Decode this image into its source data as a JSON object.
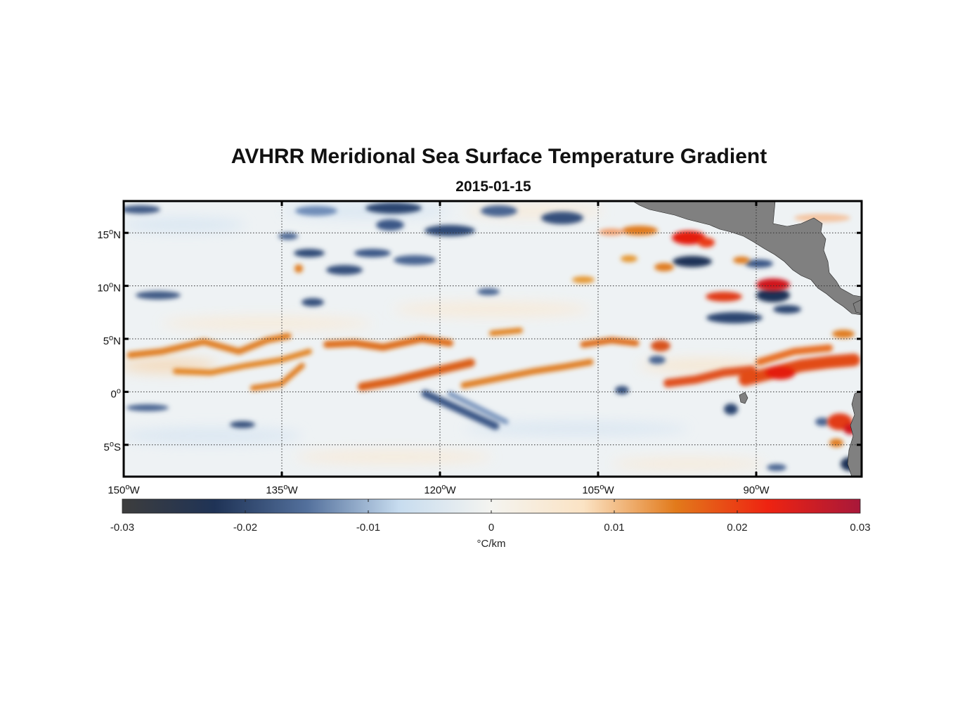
{
  "title": "AVHRR Meridional Sea Surface Temperature Gradient",
  "date": "2015-01-15",
  "map": {
    "lon_range": [
      -150,
      -80
    ],
    "lat_range": [
      -8,
      18
    ],
    "lat_ticks": [
      {
        "value": 15,
        "num": "15",
        "deg": "o",
        "hemi": "N"
      },
      {
        "value": 10,
        "num": "10",
        "deg": "o",
        "hemi": "N"
      },
      {
        "value": 5,
        "num": "5",
        "deg": "o",
        "hemi": "N"
      },
      {
        "value": 0,
        "num": "0",
        "deg": "o",
        "hemi": ""
      },
      {
        "value": -5,
        "num": "5",
        "deg": "o",
        "hemi": "S"
      }
    ],
    "lon_ticks": [
      {
        "value": -150,
        "num": "150",
        "deg": "o",
        "hemi": "W"
      },
      {
        "value": -135,
        "num": "135",
        "deg": "o",
        "hemi": "W"
      },
      {
        "value": -120,
        "num": "120",
        "deg": "o",
        "hemi": "W"
      },
      {
        "value": -105,
        "num": "105",
        "deg": "o",
        "hemi": "W"
      },
      {
        "value": -90,
        "num": "90",
        "deg": "o",
        "hemi": "W"
      }
    ],
    "land_color": "#808080"
  },
  "colorbar": {
    "min": -0.03,
    "max": 0.03,
    "ticks": [
      "-0.03",
      "-0.02",
      "-0.01",
      "0",
      "0.01",
      "0.02",
      "0.03"
    ],
    "unit_label": "°C/km",
    "stops": [
      "#3d3d3d",
      "#1f3356",
      "#53709c",
      "#c7dcef",
      "#f4f4f0",
      "#fbe3c4",
      "#e27a1b",
      "#ee2311",
      "#a8183a"
    ]
  },
  "features": [
    {
      "type": "positive",
      "desc": "equatorial front band"
    },
    {
      "type": "negative",
      "desc": "trough south of equator"
    }
  ]
}
